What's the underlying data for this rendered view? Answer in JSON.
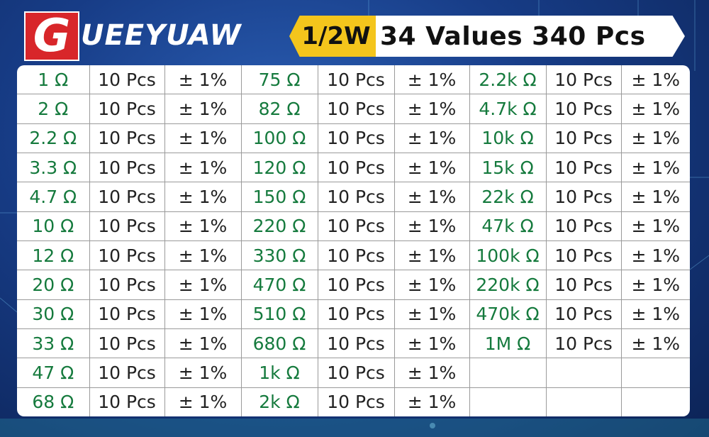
{
  "brand": {
    "logo_letter": "G",
    "name_rest": "UEEYUAW"
  },
  "header": {
    "wattage": "1/2W",
    "title": "34 Values 340 Pcs"
  },
  "colors": {
    "logo_red": "#d8262a",
    "wattage_yellow": "#f4c51c",
    "value_green": "#157a3d",
    "background_blue": "#173c86"
  },
  "table": {
    "rows": [
      [
        "1 Ω",
        "10 Pcs",
        "± 1%",
        "75 Ω",
        "10 Pcs",
        "± 1%",
        "2.2k Ω",
        "10 Pcs",
        "± 1%"
      ],
      [
        "2 Ω",
        "10 Pcs",
        "± 1%",
        "82 Ω",
        "10 Pcs",
        "± 1%",
        "4.7k Ω",
        "10 Pcs",
        "± 1%"
      ],
      [
        "2.2 Ω",
        "10 Pcs",
        "± 1%",
        "100 Ω",
        "10 Pcs",
        "± 1%",
        "10k Ω",
        "10 Pcs",
        "± 1%"
      ],
      [
        "3.3 Ω",
        "10 Pcs",
        "± 1%",
        "120 Ω",
        "10 Pcs",
        "± 1%",
        "15k Ω",
        "10 Pcs",
        "± 1%"
      ],
      [
        "4.7 Ω",
        "10 Pcs",
        "± 1%",
        "150 Ω",
        "10 Pcs",
        "± 1%",
        "22k Ω",
        "10 Pcs",
        "± 1%"
      ],
      [
        "10 Ω",
        "10 Pcs",
        "± 1%",
        "220 Ω",
        "10 Pcs",
        "± 1%",
        "47k Ω",
        "10 Pcs",
        "± 1%"
      ],
      [
        "12 Ω",
        "10 Pcs",
        "± 1%",
        "330 Ω",
        "10 Pcs",
        "± 1%",
        "100k Ω",
        "10 Pcs",
        "± 1%"
      ],
      [
        "20 Ω",
        "10 Pcs",
        "± 1%",
        "470 Ω",
        "10 Pcs",
        "± 1%",
        "220k Ω",
        "10 Pcs",
        "± 1%"
      ],
      [
        "30 Ω",
        "10 Pcs",
        "± 1%",
        "510 Ω",
        "10 Pcs",
        "± 1%",
        "470k Ω",
        "10 Pcs",
        "± 1%"
      ],
      [
        "33 Ω",
        "10 Pcs",
        "± 1%",
        "680 Ω",
        "10 Pcs",
        "± 1%",
        "1M Ω",
        "10 Pcs",
        "± 1%"
      ],
      [
        "47 Ω",
        "10 Pcs",
        "± 1%",
        "1k Ω",
        "10 Pcs",
        "± 1%",
        "",
        "",
        ""
      ],
      [
        "68 Ω",
        "10 Pcs",
        "± 1%",
        "2k Ω",
        "10 Pcs",
        "± 1%",
        "",
        "",
        ""
      ]
    ]
  }
}
